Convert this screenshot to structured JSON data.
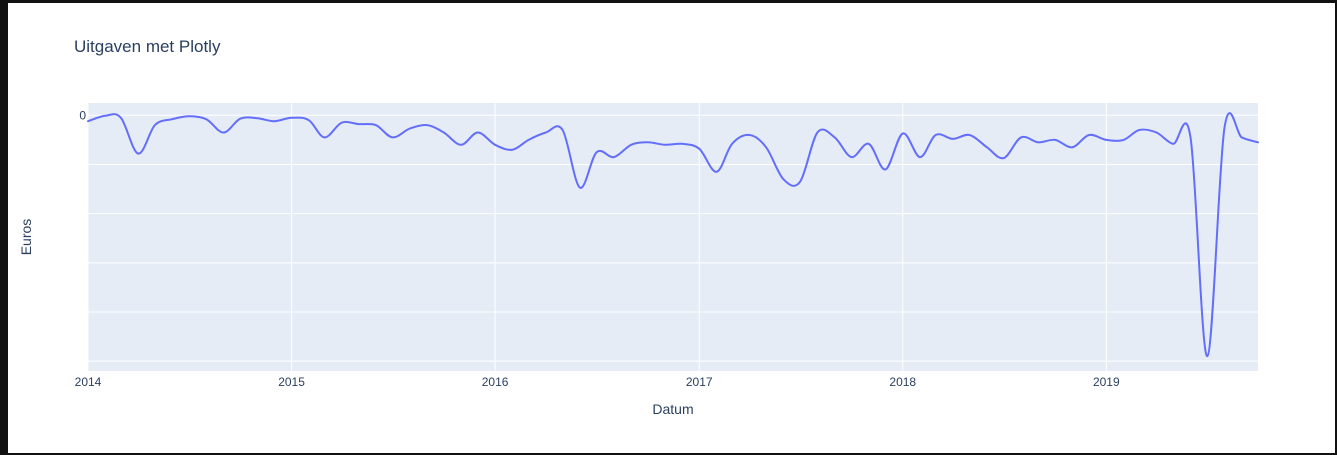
{
  "colors": {
    "plot_bg": "#e5ecf6",
    "grid": "#ffffff",
    "line": "#636efa",
    "text": "#2a3f5f"
  },
  "chart_data": {
    "type": "line",
    "title": "Uitgaven met Plotly",
    "xlabel": "Datum",
    "ylabel": "Euros",
    "x_tick_labels": [
      "2014",
      "2015",
      "2016",
      "2017",
      "2018",
      "2019"
    ],
    "y_tick_labels": [
      "0"
    ],
    "xlim": [
      "2014-01-01",
      "2019-09-30"
    ],
    "ylim": [
      -5200,
      250
    ],
    "grid": true,
    "series": [
      {
        "x": [
          "2014-01-01",
          "2014-02-01",
          "2014-03-01",
          "2014-04-01",
          "2014-05-01",
          "2014-06-01",
          "2014-07-01",
          "2014-08-01",
          "2014-09-01",
          "2014-10-01",
          "2014-11-01",
          "2014-12-01",
          "2015-01-01",
          "2015-02-01",
          "2015-03-01",
          "2015-04-01",
          "2015-05-01",
          "2015-06-01",
          "2015-07-01",
          "2015-08-01",
          "2015-09-01",
          "2015-10-01",
          "2015-11-01",
          "2015-12-01",
          "2016-01-01",
          "2016-02-01",
          "2016-03-01",
          "2016-04-01",
          "2016-05-01",
          "2016-06-01",
          "2016-07-01",
          "2016-08-01",
          "2016-09-01",
          "2016-10-01",
          "2016-11-01",
          "2016-12-01",
          "2017-01-01",
          "2017-02-01",
          "2017-03-01",
          "2017-04-01",
          "2017-05-01",
          "2017-06-01",
          "2017-07-01",
          "2017-08-01",
          "2017-09-01",
          "2017-10-01",
          "2017-11-01",
          "2017-12-01",
          "2018-01-01",
          "2018-02-01",
          "2018-03-01",
          "2018-04-01",
          "2018-05-01",
          "2018-06-01",
          "2018-07-01",
          "2018-08-01",
          "2018-09-01",
          "2018-10-01",
          "2018-11-01",
          "2018-12-01",
          "2019-01-01",
          "2019-02-01",
          "2019-03-01",
          "2019-04-01",
          "2019-05-01",
          "2019-06-01",
          "2019-07-01",
          "2019-08-01",
          "2019-09-01",
          "2019-09-30"
        ],
        "y": [
          -120,
          -10,
          -50,
          -780,
          -200,
          -80,
          -20,
          -80,
          -350,
          -70,
          -60,
          -120,
          -50,
          -100,
          -450,
          -150,
          -180,
          -200,
          -450,
          -270,
          -200,
          -350,
          -600,
          -350,
          -600,
          -700,
          -500,
          -350,
          -300,
          -1470,
          -750,
          -850,
          -600,
          -550,
          -600,
          -580,
          -680,
          -1150,
          -580,
          -400,
          -650,
          -1300,
          -1350,
          -350,
          -450,
          -850,
          -580,
          -1100,
          -370,
          -850,
          -400,
          -480,
          -400,
          -650,
          -870,
          -450,
          -550,
          -500,
          -650,
          -400,
          -500,
          -500,
          -300,
          -350,
          -580,
          -450,
          -4900,
          -250,
          -450,
          -550
        ]
      }
    ]
  }
}
